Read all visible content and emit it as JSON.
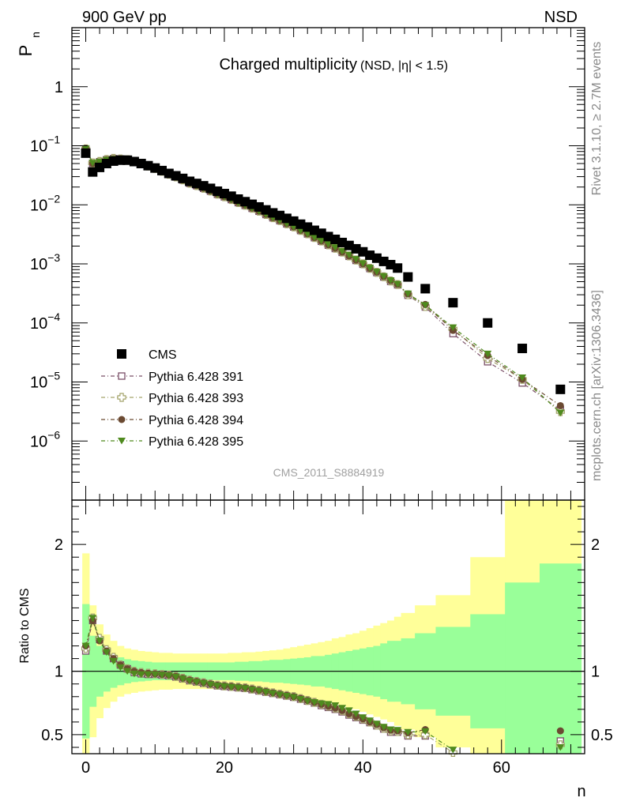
{
  "header": {
    "left": "900 GeV pp",
    "right": "NSD"
  },
  "side_text": {
    "top": "Rivet 3.1.10, ≥ 2.7M events",
    "bottom": "mcplots.cern.ch [arXiv:1306.3436]"
  },
  "colors": {
    "cms": "#000000",
    "p391": "#7a4f67",
    "p393": "#a3a36a",
    "p394": "#6b4a32",
    "p395": "#4f8a1e",
    "band_inner": "#99ff99",
    "band_outer": "#ffff99"
  },
  "chart_data": [
    {
      "type": "scatter",
      "title": "Charged multiplicity",
      "title_sub": "(NSD, |η| < 1.5)",
      "ylabel_main": "P",
      "ylabel_sub": "n",
      "yscale": "log",
      "ylim": [
        1e-07,
        10
      ],
      "xlim": [
        -2,
        72
      ],
      "yticks": [
        {
          "v": 1,
          "label": "1"
        },
        {
          "v": 0.1,
          "base": "10",
          "exp": "−1"
        },
        {
          "v": 0.01,
          "base": "10",
          "exp": "−2"
        },
        {
          "v": 0.001,
          "base": "10",
          "exp": "−3"
        },
        {
          "v": 0.0001,
          "base": "10",
          "exp": "−4"
        },
        {
          "v": 1e-05,
          "base": "10",
          "exp": "−5"
        },
        {
          "v": 1e-06,
          "base": "10",
          "exp": "−6"
        }
      ],
      "watermark": "CMS_2011_S8884919",
      "legend": [
        {
          "name": "CMS",
          "marker": "square-filled",
          "color": "#000000"
        },
        {
          "name": "Pythia 6.428 391",
          "marker": "square-open",
          "color": "#7a4f67"
        },
        {
          "name": "Pythia 6.428 393",
          "marker": "cross-open",
          "color": "#a3a36a"
        },
        {
          "name": "Pythia 6.428 394",
          "marker": "circle-filled",
          "color": "#6b4a32"
        },
        {
          "name": "Pythia 6.428 395",
          "marker": "triangle-down",
          "color": "#4f8a1e"
        }
      ],
      "x": [
        0,
        1,
        2,
        3,
        4,
        5,
        6,
        7,
        8,
        9,
        10,
        11,
        12,
        13,
        14,
        15,
        16,
        17,
        18,
        19,
        20,
        21,
        22,
        23,
        24,
        25,
        26,
        27,
        28,
        29,
        30,
        31,
        32,
        33,
        34,
        35,
        36,
        37,
        38,
        39,
        40,
        41,
        42,
        43,
        44,
        45,
        46.5,
        49,
        53,
        58,
        63,
        68.5
      ],
      "cms": [
        0.075,
        0.036,
        0.043,
        0.05,
        0.055,
        0.057,
        0.057,
        0.054,
        0.05,
        0.046,
        0.042,
        0.038,
        0.034,
        0.031,
        0.028,
        0.025,
        0.023,
        0.021,
        0.019,
        0.017,
        0.0155,
        0.014,
        0.0125,
        0.0113,
        0.0102,
        0.0092,
        0.0082,
        0.0073,
        0.0066,
        0.0059,
        0.0053,
        0.0047,
        0.0042,
        0.0037,
        0.0033,
        0.0029,
        0.0026,
        0.0023,
        0.00205,
        0.0018,
        0.0016,
        0.0014,
        0.00125,
        0.0011,
        0.00097,
        0.00085,
        0.0006,
        0.00038,
        0.00022,
        0.0001,
        3.7e-05,
        7.5e-06
      ],
      "series": [
        {
          "name": "Pythia 6.428 391",
          "key": "p391",
          "ratio": [
            1.16,
            1.4,
            1.25,
            1.16,
            1.1,
            1.05,
            1.02,
            0.99,
            0.98,
            0.975,
            0.975,
            0.97,
            0.965,
            0.955,
            0.94,
            0.925,
            0.915,
            0.905,
            0.895,
            0.885,
            0.88,
            0.875,
            0.87,
            0.865,
            0.855,
            0.845,
            0.835,
            0.825,
            0.815,
            0.805,
            0.795,
            0.78,
            0.765,
            0.75,
            0.73,
            0.715,
            0.7,
            0.68,
            0.655,
            0.635,
            0.615,
            0.595,
            0.57,
            0.545,
            0.52,
            0.52,
            0.49,
            0.49,
            0.3,
            0.22,
            0.26,
            0.45
          ]
        },
        {
          "name": "Pythia 6.428 393",
          "key": "p393",
          "ratio": [
            1.18,
            1.42,
            1.26,
            1.17,
            1.11,
            1.05,
            1.02,
            1.0,
            0.99,
            0.985,
            0.98,
            0.975,
            0.97,
            0.96,
            0.945,
            0.93,
            0.92,
            0.91,
            0.9,
            0.89,
            0.885,
            0.88,
            0.875,
            0.87,
            0.86,
            0.85,
            0.84,
            0.83,
            0.82,
            0.81,
            0.8,
            0.785,
            0.77,
            0.755,
            0.74,
            0.725,
            0.71,
            0.69,
            0.665,
            0.645,
            0.625,
            0.6,
            0.575,
            0.55,
            0.53,
            0.525,
            0.5,
            0.5,
            0.36,
            0.25,
            0.3,
            0.42
          ]
        },
        {
          "name": "Pythia 6.428 394",
          "key": "p394",
          "ratio": [
            1.2,
            1.4,
            1.24,
            1.16,
            1.1,
            1.05,
            1.02,
            1.0,
            0.99,
            0.985,
            0.98,
            0.975,
            0.97,
            0.96,
            0.945,
            0.93,
            0.92,
            0.91,
            0.9,
            0.89,
            0.885,
            0.88,
            0.875,
            0.87,
            0.86,
            0.85,
            0.84,
            0.83,
            0.82,
            0.81,
            0.8,
            0.785,
            0.77,
            0.755,
            0.74,
            0.725,
            0.71,
            0.69,
            0.665,
            0.645,
            0.625,
            0.6,
            0.58,
            0.555,
            0.535,
            0.53,
            0.515,
            0.54,
            0.34,
            0.28,
            0.3,
            0.53
          ]
        },
        {
          "name": "Pythia 6.428 395",
          "key": "p395",
          "ratio": [
            1.2,
            1.42,
            1.24,
            1.15,
            1.08,
            1.03,
            1.0,
            0.98,
            0.975,
            0.975,
            0.975,
            0.97,
            0.965,
            0.955,
            0.94,
            0.925,
            0.915,
            0.905,
            0.895,
            0.885,
            0.88,
            0.875,
            0.87,
            0.865,
            0.855,
            0.845,
            0.835,
            0.825,
            0.815,
            0.805,
            0.795,
            0.78,
            0.765,
            0.755,
            0.745,
            0.74,
            0.73,
            0.71,
            0.69,
            0.665,
            0.635,
            0.61,
            0.585,
            0.56,
            0.54,
            0.535,
            0.52,
            0.525,
            0.38,
            0.3,
            0.32,
            0.4
          ]
        }
      ]
    },
    {
      "type": "area",
      "ylabel": "Ratio to CMS",
      "xlabel": "n",
      "xlim": [
        -2,
        72
      ],
      "ylim": [
        0.35,
        2.35
      ],
      "xticks": [
        0,
        20,
        40,
        60
      ],
      "yticks": [
        {
          "v": 0.5,
          "label": "0.5"
        },
        {
          "v": 1,
          "label": "1"
        },
        {
          "v": 2,
          "label": "2"
        }
      ],
      "band_edges": [
        -0.5,
        0.5,
        1.5,
        2.5,
        3.5,
        4.5,
        5.5,
        6.5,
        7.5,
        8.5,
        9.5,
        10.5,
        11.5,
        12.5,
        13.5,
        14.5,
        15.5,
        16.5,
        17.5,
        18.5,
        19.5,
        20.5,
        21.5,
        22.5,
        23.5,
        24.5,
        25.5,
        26.5,
        27.5,
        28.5,
        29.5,
        30.5,
        31.5,
        32.5,
        33.5,
        34.5,
        35.5,
        36.5,
        37.5,
        38.5,
        39.5,
        40.5,
        41.5,
        42.5,
        43.5,
        44.5,
        45.5,
        47.5,
        50.5,
        55.5,
        60.5,
        65.5,
        71.5
      ],
      "band_inner": [
        0.53,
        0.28,
        0.2,
        0.16,
        0.13,
        0.11,
        0.095,
        0.085,
        0.08,
        0.075,
        0.07,
        0.07,
        0.07,
        0.07,
        0.07,
        0.07,
        0.07,
        0.07,
        0.07,
        0.07,
        0.07,
        0.07,
        0.075,
        0.075,
        0.08,
        0.08,
        0.085,
        0.09,
        0.09,
        0.095,
        0.1,
        0.105,
        0.11,
        0.12,
        0.12,
        0.13,
        0.14,
        0.15,
        0.16,
        0.17,
        0.18,
        0.19,
        0.2,
        0.22,
        0.24,
        0.24,
        0.26,
        0.3,
        0.35,
        0.45,
        0.7,
        0.85
      ],
      "band_outer": [
        0.93,
        0.52,
        0.37,
        0.29,
        0.24,
        0.2,
        0.18,
        0.17,
        0.16,
        0.155,
        0.15,
        0.145,
        0.145,
        0.14,
        0.14,
        0.14,
        0.14,
        0.14,
        0.14,
        0.14,
        0.14,
        0.145,
        0.145,
        0.15,
        0.15,
        0.155,
        0.16,
        0.165,
        0.17,
        0.18,
        0.19,
        0.2,
        0.21,
        0.22,
        0.23,
        0.24,
        0.26,
        0.27,
        0.29,
        0.3,
        0.32,
        0.34,
        0.36,
        0.38,
        0.4,
        0.43,
        0.46,
        0.52,
        0.6,
        0.9,
        1.5,
        1.7
      ]
    }
  ]
}
